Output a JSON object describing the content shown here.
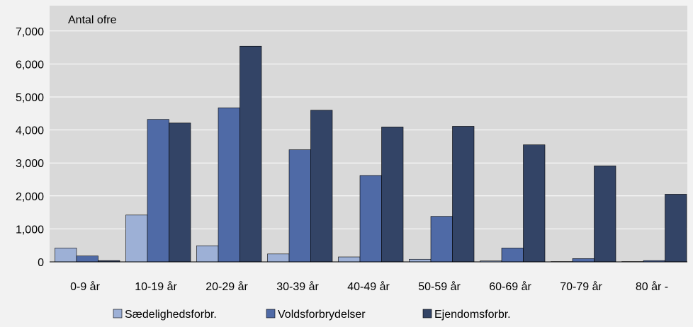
{
  "chart_data": {
    "type": "bar",
    "ylabel": "Antal ofre",
    "categories": [
      "0-9 år",
      "10-19 år",
      "20-29 år",
      "30-39 år",
      "40-49 år",
      "50-59 år",
      "60-69 år",
      "70-79 år",
      "80 år -"
    ],
    "series": [
      {
        "name": "Sædelighedsforbr.",
        "color": "#9db0d6",
        "values": [
          420,
          1420,
          490,
          240,
          150,
          80,
          30,
          10,
          10
        ]
      },
      {
        "name": "Voldsforbrydelser",
        "color": "#4f6aa6",
        "values": [
          180,
          4320,
          4670,
          3400,
          2620,
          1380,
          420,
          100,
          40
        ]
      },
      {
        "name": "Ejendomsforbr.",
        "color": "#334466",
        "values": [
          40,
          4210,
          6540,
          4600,
          4090,
          4110,
          3550,
          2910,
          2050
        ]
      }
    ],
    "ylim": [
      0,
      7000
    ],
    "yticks": [
      0,
      1000,
      2000,
      3000,
      4000,
      5000,
      6000,
      7000
    ],
    "ytick_labels": [
      "0",
      "1,000",
      "2,000",
      "3,000",
      "4,000",
      "5,000",
      "6,000",
      "7,000"
    ],
    "grid": true,
    "legend_position": "bottom"
  }
}
